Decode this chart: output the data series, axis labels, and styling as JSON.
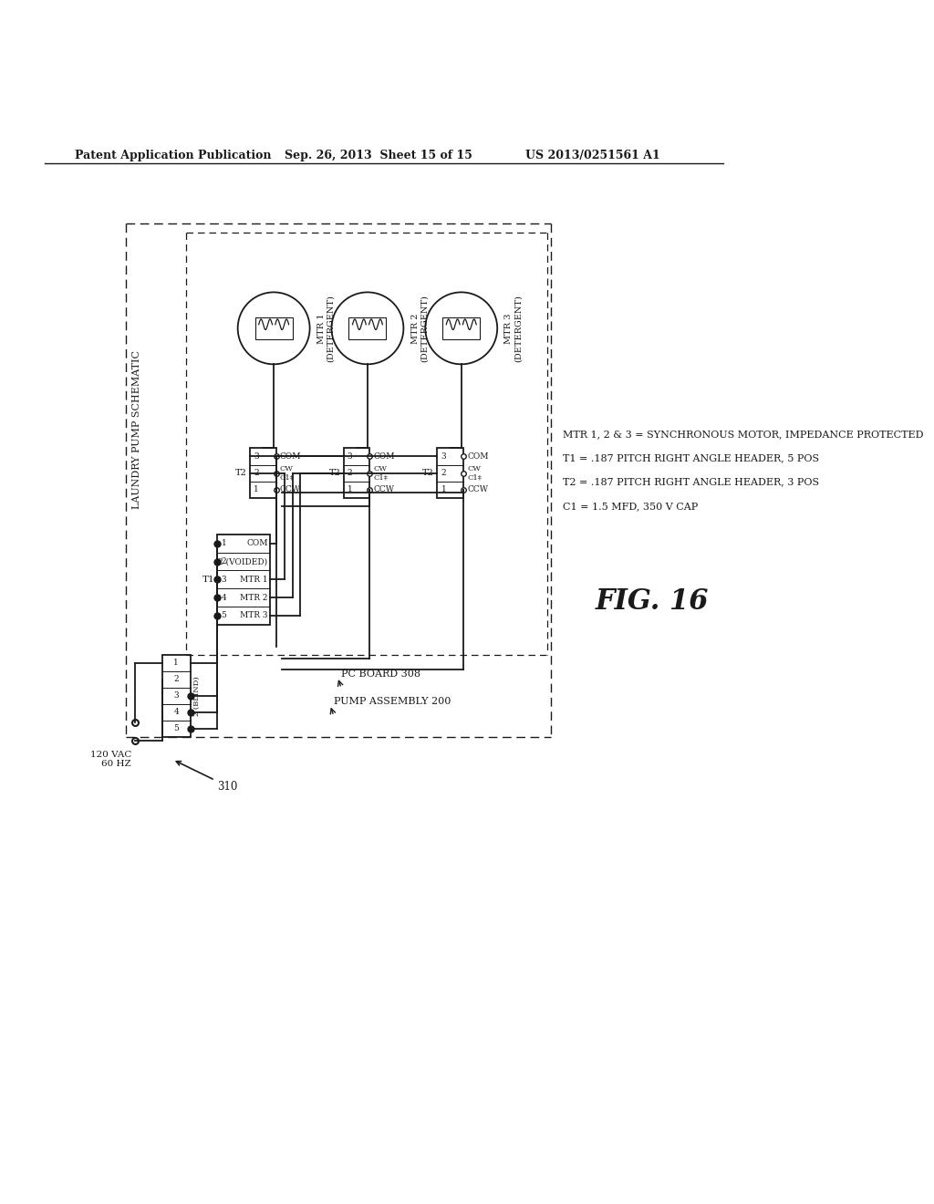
{
  "page_title_left": "Patent Application Publication",
  "page_title_center": "Sep. 26, 2013  Sheet 15 of 15",
  "page_title_right": "US 2013/0251561 A1",
  "figure_label": "FIG. 16",
  "diagram_title": "LAUNDRY PUMP SCHEMATIC",
  "voltage_label": "120 VAC\n60 HZ",
  "pump_assembly_label": "PUMP ASSEMBLY 200",
  "pc_board_label": "PC BOARD 308",
  "arrow_label": "310",
  "notes": [
    "MTR 1, 2 & 3 = SYNCHRONOUS MOTOR, IMPEDANCE PROTECTED",
    "T1 = .187 PITCH RIGHT ANGLE HEADER, 5 POS",
    "T2 = .187 PITCH RIGHT ANGLE HEADER, 3 POS",
    "C1 = 1.5 MFD, 350 V CAP"
  ],
  "bg_color": "#ffffff",
  "line_color": "#1a1a1a",
  "text_color": "#1a1a1a"
}
